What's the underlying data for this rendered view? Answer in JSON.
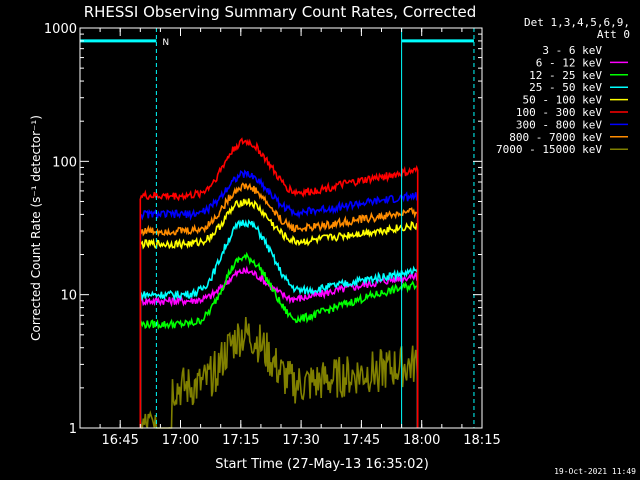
{
  "chart_data": {
    "type": "line",
    "title": "RHESSI Observing Summary Count Rates, Corrected",
    "xlabel": "Start Time (27-May-13 16:35:02)",
    "ylabel": "Corrected Count Rate (s⁻¹ detector⁻¹)",
    "yscale": "log",
    "ylim": [
      1,
      1000
    ],
    "xlim_minutes_after_1635": [
      0,
      100
    ],
    "x_ticks": [
      "16:45",
      "17:00",
      "17:15",
      "17:30",
      "17:45",
      "18:00",
      "18:15"
    ],
    "y_ticks": [
      "1",
      "10",
      "100",
      "1000"
    ],
    "grid": false,
    "legend_placement": "right",
    "legend_header": [
      "Det 1,3,4,5,6,9,",
      "Att 0"
    ],
    "timestamp": "19-Oct-2021 11:49",
    "attenuator_marker": "N",
    "annotations": {
      "attenuator_state_bars": [
        {
          "start": "16:35",
          "end": "16:54",
          "level": 800,
          "color": "#00ffff"
        },
        {
          "start": "17:55",
          "end": "18:13",
          "level": 800,
          "color": "#00ffff"
        }
      ],
      "boundary_lines": [
        {
          "time": "16:35",
          "style": "solid",
          "color": "#00ffff"
        },
        {
          "time": "16:54",
          "style": "dashed",
          "color": "#00ffff"
        },
        {
          "time": "17:55",
          "style": "solid",
          "color": "#00ffff"
        },
        {
          "time": "18:13",
          "style": "dashed",
          "color": "#00ffff"
        }
      ]
    },
    "data_span": {
      "start": "16:50",
      "end": "17:59"
    },
    "peak_time": "17:16",
    "series": [
      {
        "name": "3 - 6 keV",
        "color": "#000000",
        "base": 55,
        "peak": 140,
        "end": 85
      },
      {
        "name": "6 - 12 keV",
        "color": "#ff00ff",
        "base": 9,
        "peak": 15,
        "end": 14
      },
      {
        "name": "12 - 25 keV",
        "color": "#00ff00",
        "base": 6,
        "peak": 19,
        "end": 12
      },
      {
        "name": "25 - 50 keV",
        "color": "#00ffff",
        "base": 10,
        "peak": 35,
        "end": 15
      },
      {
        "name": "50 - 100 keV",
        "color": "#ffff00",
        "base": 24,
        "peak": 50,
        "end": 33
      },
      {
        "name": "100 - 300 keV",
        "color": "#ff0000",
        "base": 55,
        "peak": 140,
        "end": 85
      },
      {
        "name": "300 - 800 keV",
        "color": "#0000ff",
        "base": 40,
        "peak": 80,
        "end": 55
      },
      {
        "name": "800 - 7000 keV",
        "color": "#ff8c00",
        "base": 30,
        "peak": 65,
        "end": 42
      },
      {
        "name": "7000 - 15000 keV",
        "color": "#808000",
        "base": 2,
        "peak": 5,
        "end": 3
      }
    ]
  }
}
